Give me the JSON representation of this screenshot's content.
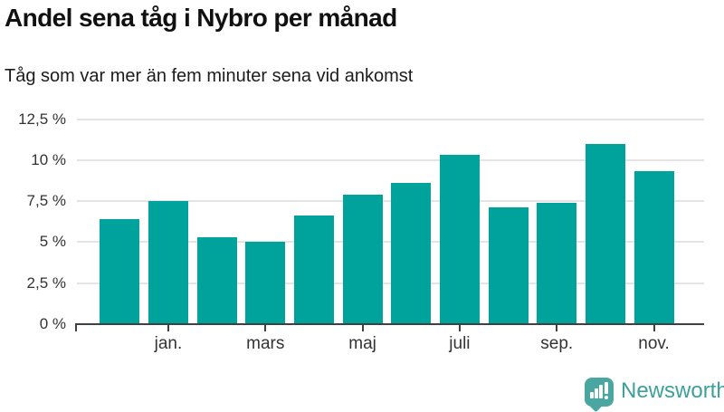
{
  "header": {
    "title": "Andel sena tåg i Nybro per månad",
    "subtitle": "Tåg som var mer än fem minuter sena vid ankomst"
  },
  "chart_data": {
    "type": "bar",
    "title": "Andel sena tåg i Nybro per månad",
    "subtitle": "Tåg som var mer än fem minuter sena vid ankomst",
    "unit": "%",
    "bar_count": 12,
    "values": [
      6.4,
      7.5,
      5.3,
      5.0,
      6.6,
      7.9,
      8.6,
      10.3,
      7.1,
      7.4,
      11.0,
      9.3
    ],
    "x_tick_labels": [
      "jan.",
      "mars",
      "maj",
      "juli",
      "sep.",
      "nov."
    ],
    "x_tick_bar_indices": [
      1,
      3,
      5,
      7,
      9,
      11
    ],
    "y_tick_labels": [
      "0 %",
      "2,5 %",
      "5 %",
      "7,5 %",
      "10 %",
      "12,5 %"
    ],
    "y_tick_values": [
      0,
      2.5,
      5,
      7.5,
      10,
      12.5
    ],
    "ylim": [
      0,
      12.5
    ],
    "grid": "horizontal-only",
    "legend": "none",
    "colors": {
      "bar": "#00a39c",
      "axis": "#404040",
      "gridline": "#e4e4e4",
      "tick_label": "#333333"
    }
  },
  "footer": {
    "logo_text": "Newsworthy",
    "logo_icon": "newsworthy-chart-bubble-icon",
    "logo_text_color": "#3da09b",
    "logo_badge_color": "#4aa6a1"
  }
}
